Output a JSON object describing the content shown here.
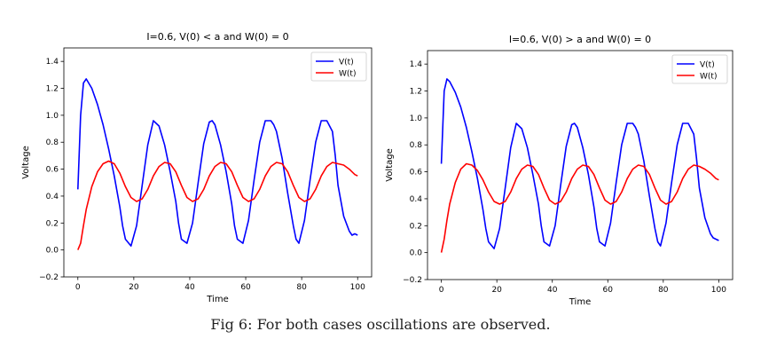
{
  "caption": "Fig 6: For both cases oscillations are observed.",
  "colors": {
    "v_series": "#0000ff",
    "w_series": "#ff0000"
  },
  "chart_data": [
    {
      "type": "line",
      "title": "I=0.6, V(0) < a and W(0) = 0",
      "xlabel": "Time",
      "ylabel": "Voltage",
      "xlim": [
        -5,
        105
      ],
      "ylim": [
        -0.2,
        1.5
      ],
      "xticks": [
        0,
        20,
        40,
        60,
        80,
        100
      ],
      "yticks": [
        -0.2,
        0.0,
        0.2,
        0.4,
        0.6,
        0.8,
        1.0,
        1.2,
        1.4
      ],
      "legend": "top-right",
      "grid": false,
      "series": [
        {
          "name": "V(t)",
          "color": "#0000ff",
          "x": [
            0,
            1,
            2,
            3,
            5,
            7,
            9,
            11,
            13,
            15,
            16,
            17,
            19,
            21,
            23,
            25,
            27,
            29,
            31,
            33,
            35,
            36,
            37,
            39,
            41,
            43,
            45,
            47,
            48,
            49,
            51,
            53,
            55,
            56,
            57,
            59,
            61,
            63,
            65,
            67,
            69,
            70,
            71,
            73,
            75,
            77,
            78,
            79,
            81,
            83,
            85,
            87,
            89,
            91,
            92,
            93,
            95,
            97,
            98,
            99,
            100
          ],
          "y": [
            0.45,
            1.0,
            1.24,
            1.27,
            1.2,
            1.08,
            0.93,
            0.75,
            0.55,
            0.32,
            0.18,
            0.08,
            0.03,
            0.18,
            0.48,
            0.78,
            0.96,
            0.92,
            0.78,
            0.58,
            0.36,
            0.2,
            0.08,
            0.05,
            0.2,
            0.5,
            0.79,
            0.95,
            0.96,
            0.93,
            0.78,
            0.58,
            0.34,
            0.18,
            0.08,
            0.05,
            0.22,
            0.52,
            0.8,
            0.96,
            0.96,
            0.93,
            0.88,
            0.68,
            0.42,
            0.18,
            0.08,
            0.05,
            0.22,
            0.52,
            0.8,
            0.96,
            0.96,
            0.88,
            0.7,
            0.48,
            0.25,
            0.14,
            0.11,
            0.12,
            0.11
          ]
        },
        {
          "name": "W(t)",
          "color": "#ff0000",
          "x": [
            0,
            1,
            2,
            3,
            5,
            7,
            9,
            11,
            13,
            15,
            17,
            19,
            21,
            23,
            25,
            27,
            29,
            31,
            33,
            35,
            37,
            39,
            41,
            43,
            45,
            47,
            49,
            51,
            53,
            55,
            57,
            59,
            61,
            63,
            65,
            67,
            69,
            71,
            73,
            75,
            77,
            79,
            81,
            83,
            85,
            87,
            89,
            91,
            93,
            95,
            97,
            99,
            100
          ],
          "y": [
            0.0,
            0.05,
            0.18,
            0.3,
            0.47,
            0.58,
            0.64,
            0.66,
            0.64,
            0.57,
            0.47,
            0.39,
            0.36,
            0.38,
            0.45,
            0.55,
            0.62,
            0.65,
            0.64,
            0.58,
            0.48,
            0.39,
            0.36,
            0.38,
            0.45,
            0.55,
            0.62,
            0.65,
            0.64,
            0.58,
            0.48,
            0.39,
            0.36,
            0.38,
            0.45,
            0.55,
            0.62,
            0.65,
            0.64,
            0.58,
            0.48,
            0.39,
            0.36,
            0.38,
            0.45,
            0.55,
            0.62,
            0.65,
            0.64,
            0.63,
            0.6,
            0.56,
            0.55
          ]
        }
      ]
    },
    {
      "type": "line",
      "title": "I=0.6, V(0) > a and W(0) = 0",
      "xlabel": "Time",
      "ylabel": "Voltage",
      "xlim": [
        -5,
        105
      ],
      "ylim": [
        -0.2,
        1.5
      ],
      "xticks": [
        0,
        20,
        40,
        60,
        80,
        100
      ],
      "yticks": [
        -0.2,
        0.0,
        0.2,
        0.4,
        0.6,
        0.8,
        1.0,
        1.2,
        1.4
      ],
      "legend": "top-right",
      "grid": false,
      "series": [
        {
          "name": "V(t)",
          "color": "#0000ff",
          "x": [
            0,
            1,
            2,
            3,
            5,
            7,
            9,
            11,
            13,
            15,
            16,
            17,
            19,
            21,
            23,
            25,
            27,
            29,
            31,
            33,
            35,
            36,
            37,
            39,
            41,
            43,
            45,
            47,
            48,
            49,
            51,
            53,
            55,
            56,
            57,
            59,
            61,
            63,
            65,
            67,
            69,
            70,
            71,
            73,
            75,
            77,
            78,
            79,
            81,
            83,
            85,
            87,
            89,
            91,
            92,
            93,
            95,
            97,
            98,
            99,
            100
          ],
          "y": [
            0.66,
            1.2,
            1.29,
            1.27,
            1.19,
            1.08,
            0.93,
            0.75,
            0.55,
            0.32,
            0.18,
            0.08,
            0.03,
            0.18,
            0.48,
            0.78,
            0.96,
            0.92,
            0.78,
            0.58,
            0.36,
            0.2,
            0.08,
            0.05,
            0.2,
            0.5,
            0.79,
            0.95,
            0.96,
            0.93,
            0.78,
            0.58,
            0.34,
            0.18,
            0.08,
            0.05,
            0.22,
            0.52,
            0.8,
            0.96,
            0.96,
            0.93,
            0.88,
            0.68,
            0.42,
            0.18,
            0.08,
            0.05,
            0.22,
            0.52,
            0.8,
            0.96,
            0.96,
            0.88,
            0.7,
            0.48,
            0.26,
            0.14,
            0.11,
            0.1,
            0.09
          ]
        },
        {
          "name": "W(t)",
          "color": "#ff0000",
          "x": [
            0,
            1,
            2,
            3,
            5,
            7,
            9,
            11,
            13,
            15,
            17,
            19,
            21,
            23,
            25,
            27,
            29,
            31,
            33,
            35,
            37,
            39,
            41,
            43,
            45,
            47,
            49,
            51,
            53,
            55,
            57,
            59,
            61,
            63,
            65,
            67,
            69,
            71,
            73,
            75,
            77,
            79,
            81,
            83,
            85,
            87,
            89,
            91,
            93,
            95,
            97,
            99,
            100
          ],
          "y": [
            0.0,
            0.1,
            0.24,
            0.36,
            0.52,
            0.62,
            0.66,
            0.65,
            0.61,
            0.54,
            0.45,
            0.38,
            0.36,
            0.38,
            0.45,
            0.55,
            0.62,
            0.65,
            0.64,
            0.58,
            0.48,
            0.39,
            0.36,
            0.38,
            0.45,
            0.55,
            0.62,
            0.65,
            0.64,
            0.58,
            0.48,
            0.39,
            0.36,
            0.38,
            0.45,
            0.55,
            0.62,
            0.65,
            0.64,
            0.58,
            0.48,
            0.39,
            0.36,
            0.38,
            0.45,
            0.55,
            0.62,
            0.65,
            0.64,
            0.62,
            0.59,
            0.55,
            0.54
          ]
        }
      ]
    }
  ]
}
